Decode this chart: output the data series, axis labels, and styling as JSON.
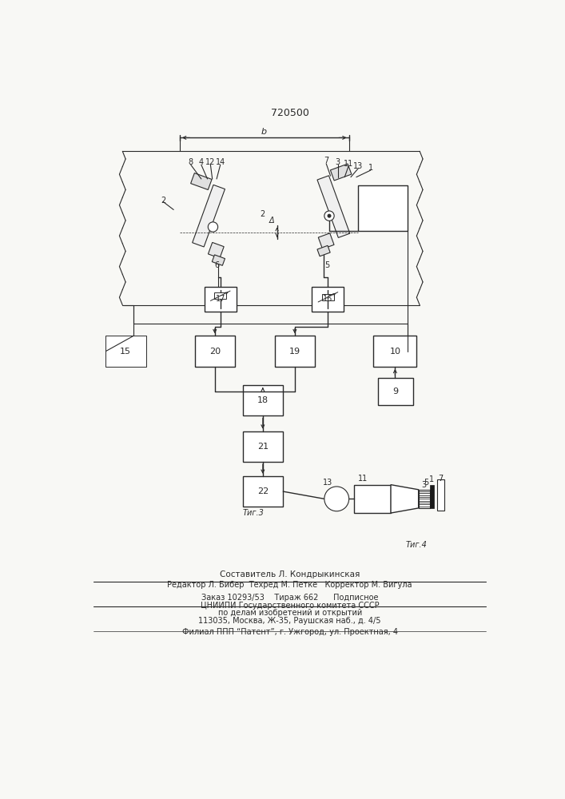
{
  "title": "720500",
  "bg_color": "#f8f8f5",
  "line_color": "#2a2a2a",
  "fig_width": 7.07,
  "fig_height": 10.0,
  "dpi": 100,
  "footer_lines": [
    "Составитель Л. Кондрыкинская",
    "Редактор Л. Бибер  Техред М. Петке   Корректор М. Вигула",
    "Заказ 10293/53    Тираж 662      Подписное",
    "ЦНИИПИ Государственного комитета СССР",
    "по делам изобретений и открытий",
    "113035, Москва, Ж-35, Раушская наб., д. 4/5",
    "Филиал ППП “Патент”, г. Ужгород, ул. Проектная, 4"
  ]
}
